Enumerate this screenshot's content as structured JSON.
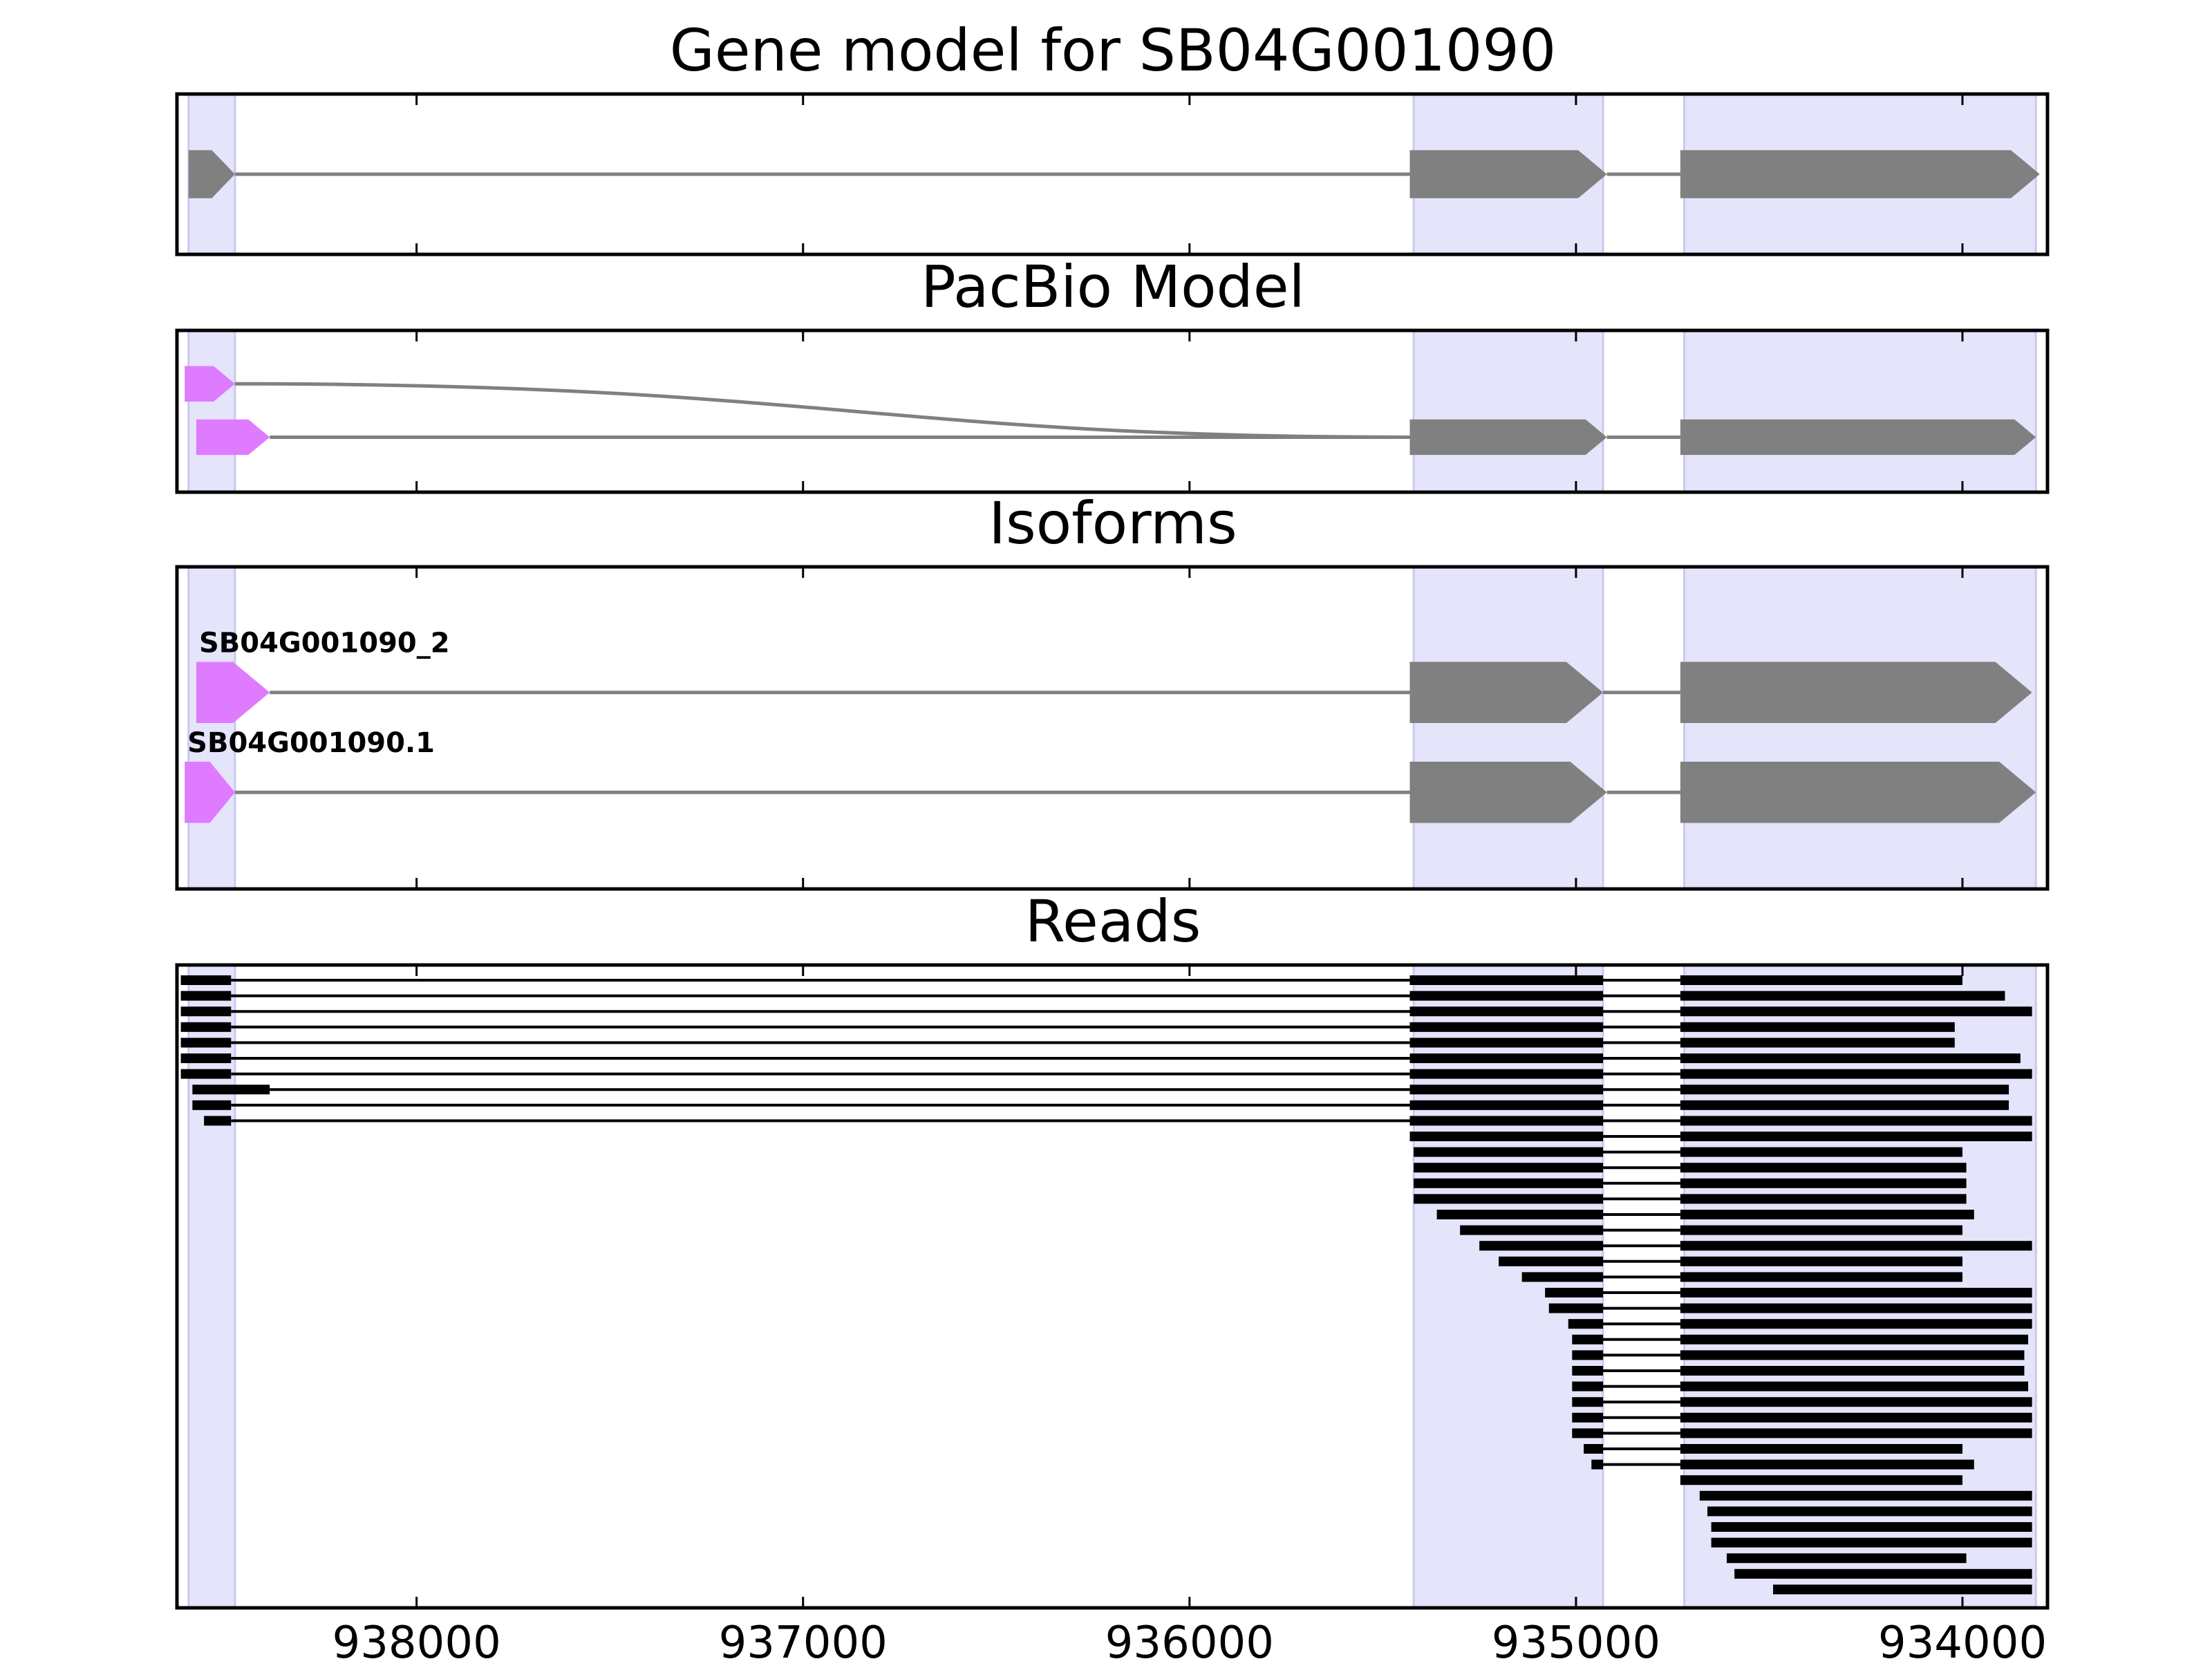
{
  "colors": {
    "exon": "#808080",
    "variant_exon": "#df7bff",
    "intron": "#808080",
    "read": "#000000",
    "highlight": "#e4e4fb",
    "axis": "#000000"
  },
  "chart_data": {
    "type": "gene-structure",
    "xlim": [
      938620,
      933780
    ],
    "x_ticks": [
      938000,
      937000,
      936000,
      935000,
      934000
    ],
    "highlight_regions": [
      [
        938590,
        938470
      ],
      [
        935420,
        934930
      ],
      [
        934720,
        933810
      ]
    ],
    "panels": [
      {
        "title": "Gene model for SB04G001090",
        "tracks": [
          {
            "label": "",
            "y": 0.5,
            "h": 0.3,
            "exons": [
              [
                938590,
                938470,
                "exon"
              ],
              [
                935430,
                934920,
                "exon"
              ],
              [
                934730,
                933800,
                "exon"
              ]
            ]
          }
        ]
      },
      {
        "title": "PacBio Model",
        "tracks": [
          {
            "label": "",
            "y": 0.33,
            "h": 0.22,
            "curve_to": 0.66,
            "exons": [
              [
                938600,
                938470,
                "variant"
              ]
            ]
          },
          {
            "label": "",
            "y": 0.66,
            "h": 0.22,
            "exons": [
              [
                938570,
                938380,
                "variant"
              ],
              [
                935430,
                934920,
                "exon"
              ],
              [
                934730,
                933810,
                "exon"
              ]
            ]
          }
        ]
      },
      {
        "title": "Isoforms",
        "tracks": [
          {
            "label": "SB04G001090_2",
            "y": 0.39,
            "h": 0.19,
            "exons": [
              [
                938570,
                938380,
                "variant"
              ],
              [
                935430,
                934930,
                "exon"
              ],
              [
                934730,
                933820,
                "exon"
              ]
            ]
          },
          {
            "label": "SB04G001090.1",
            "y": 0.7,
            "h": 0.19,
            "exons": [
              [
                938600,
                938470,
                "variant"
              ],
              [
                935430,
                934920,
                "exon"
              ],
              [
                934730,
                933810,
                "exon"
              ]
            ]
          }
        ]
      },
      {
        "title": "Reads",
        "reads": [
          [
            [
              938610,
              938480
            ],
            [
              935430,
              934930
            ],
            [
              934730,
              934000
            ]
          ],
          [
            [
              938610,
              938480
            ],
            [
              935430,
              934930
            ],
            [
              934730,
              933890
            ]
          ],
          [
            [
              938610,
              938480
            ],
            [
              935430,
              934930
            ],
            [
              934730,
              933820
            ]
          ],
          [
            [
              938610,
              938480
            ],
            [
              935430,
              934930
            ],
            [
              934730,
              934020
            ]
          ],
          [
            [
              938610,
              938480
            ],
            [
              935430,
              934930
            ],
            [
              934730,
              934020
            ]
          ],
          [
            [
              938610,
              938480
            ],
            [
              935430,
              934930
            ],
            [
              934730,
              933850
            ]
          ],
          [
            [
              938610,
              938480
            ],
            [
              935430,
              934930
            ],
            [
              934730,
              933820
            ]
          ],
          [
            [
              938580,
              938380
            ],
            [
              935430,
              934930
            ],
            [
              934730,
              933880
            ]
          ],
          [
            [
              938580,
              938480
            ],
            [
              935430,
              934930
            ],
            [
              934730,
              933880
            ]
          ],
          [
            [
              938550,
              938480
            ],
            [
              935430,
              934930
            ],
            [
              934730,
              933820
            ]
          ],
          [
            [
              935430,
              934930
            ],
            [
              934730,
              933820
            ]
          ],
          [
            [
              935420,
              934930
            ],
            [
              934730,
              934000
            ]
          ],
          [
            [
              935420,
              934930
            ],
            [
              934730,
              933990
            ]
          ],
          [
            [
              935420,
              934930
            ],
            [
              934730,
              933990
            ]
          ],
          [
            [
              935420,
              934930
            ],
            [
              934730,
              933990
            ]
          ],
          [
            [
              935360,
              934930
            ],
            [
              934730,
              933970
            ]
          ],
          [
            [
              935300,
              934930
            ],
            [
              934730,
              934000
            ]
          ],
          [
            [
              935250,
              934930
            ],
            [
              934730,
              933820
            ]
          ],
          [
            [
              935200,
              934930
            ],
            [
              934730,
              934000
            ]
          ],
          [
            [
              935140,
              934930
            ],
            [
              934730,
              934000
            ]
          ],
          [
            [
              935080,
              934930
            ],
            [
              934730,
              933820
            ]
          ],
          [
            [
              935070,
              934930
            ],
            [
              934730,
              933820
            ]
          ],
          [
            [
              935020,
              934930
            ],
            [
              934730,
              933820
            ]
          ],
          [
            [
              935010,
              934930
            ],
            [
              934730,
              933830
            ]
          ],
          [
            [
              935010,
              934930
            ],
            [
              934730,
              933840
            ]
          ],
          [
            [
              935010,
              934930
            ],
            [
              934730,
              933840
            ]
          ],
          [
            [
              935010,
              934930
            ],
            [
              934730,
              933830
            ]
          ],
          [
            [
              935010,
              934930
            ],
            [
              934730,
              933820
            ]
          ],
          [
            [
              935010,
              934930
            ],
            [
              934730,
              933820
            ]
          ],
          [
            [
              935010,
              934930
            ],
            [
              934730,
              933820
            ]
          ],
          [
            [
              934980,
              934930
            ],
            [
              934730,
              934000
            ]
          ],
          [
            [
              934960,
              934930
            ],
            [
              934730,
              933970
            ]
          ],
          [
            [
              934730,
              934000
            ]
          ],
          [
            [
              934680,
              933820
            ]
          ],
          [
            [
              934660,
              933820
            ]
          ],
          [
            [
              934650,
              933820
            ]
          ],
          [
            [
              934650,
              933820
            ]
          ],
          [
            [
              934610,
              933990
            ]
          ],
          [
            [
              934590,
              933820
            ]
          ],
          [
            [
              934490,
              933820
            ]
          ]
        ]
      }
    ]
  }
}
